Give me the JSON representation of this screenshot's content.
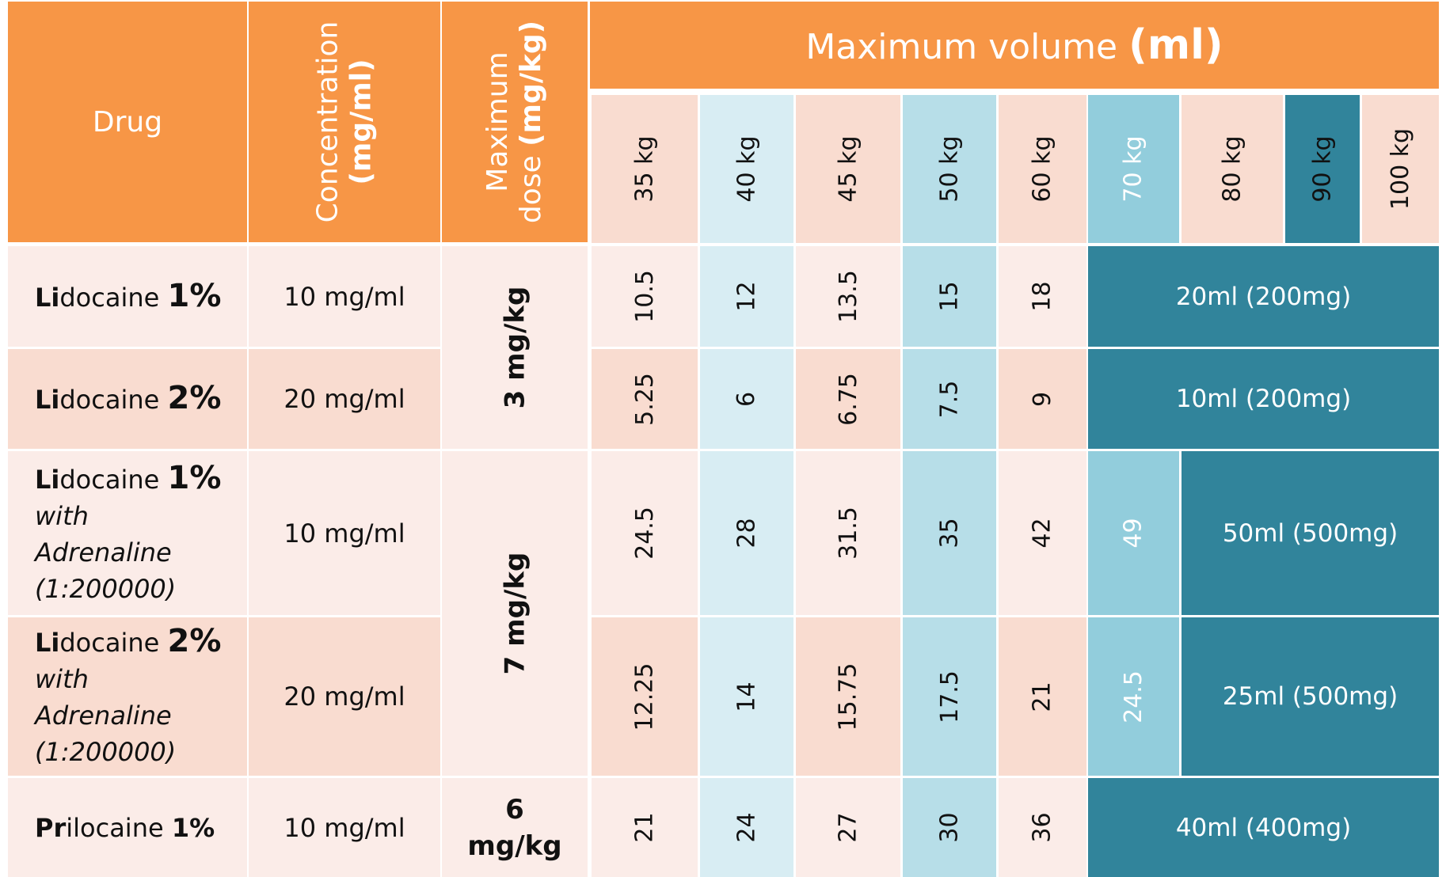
{
  "header": {
    "drug": "Drug",
    "concentration_line1": "Concentration",
    "concentration_line2": "(mg/ml)",
    "max_dose_line1": "Maximum",
    "max_dose_line2a": "dose",
    "max_dose_line2b": "(mg/kg)",
    "max_volume_text": "Maximum volume",
    "max_volume_unit": "(ml)"
  },
  "weights": [
    "35 kg",
    "40 kg",
    "45 kg",
    "50 kg",
    "60 kg",
    "70 kg",
    "80 kg",
    "90 kg",
    "100 kg"
  ],
  "doses": {
    "lidocaine": "3 mg/kg",
    "with_adrenaline": "7 mg/kg",
    "prilocaine_a": "6",
    "prilocaine_b": "mg/kg"
  },
  "rows": [
    {
      "drug_bold": "Li",
      "drug_rest": "docaine ",
      "drug_pct": "1%",
      "with": "",
      "adrenaline": "",
      "ratio": "",
      "concentration": "10 mg/ml",
      "values": [
        "10.5",
        "12",
        "13.5",
        "15",
        "18"
      ],
      "value_70": "",
      "span": "20ml (200mg)"
    },
    {
      "drug_bold": "Li",
      "drug_rest": "docaine ",
      "drug_pct": "2%",
      "with": "",
      "adrenaline": "",
      "ratio": "",
      "concentration": "20 mg/ml",
      "values": [
        "5.25",
        "6",
        "6.75",
        "7.5",
        "9"
      ],
      "value_70": "",
      "span": "10ml (200mg)"
    },
    {
      "drug_bold": "Li",
      "drug_rest": "docaine ",
      "drug_pct": "1%",
      "with": "with",
      "adrenaline": "Adrenaline",
      "ratio": "(1:200000)",
      "concentration": "10 mg/ml",
      "values": [
        "24.5",
        "28",
        "31.5",
        "35",
        "42"
      ],
      "value_70": "49",
      "span": "50ml (500mg)"
    },
    {
      "drug_bold": "Li",
      "drug_rest": "docaine ",
      "drug_pct": "2%",
      "with": "with",
      "adrenaline": "Adrenaline",
      "ratio": "(1:200000)",
      "concentration": "20 mg/ml",
      "values": [
        "12.25",
        "14",
        "15.75",
        "17.5",
        "21"
      ],
      "value_70": "24.5",
      "span": "25ml (500mg)"
    },
    {
      "drug_bold": "Pr",
      "drug_rest": "ilocaine ",
      "drug_pct": "1%",
      "with": "",
      "adrenaline": "",
      "ratio": "",
      "concentration": "10 mg/ml",
      "values": [
        "21",
        "24",
        "27",
        "30",
        "36"
      ],
      "value_70": "",
      "span": "40ml (400mg)"
    }
  ],
  "colors": {
    "header_orange": "#F79646",
    "peach_light": "#FBECE8",
    "peach": "#F9DCD0",
    "blue_light": "#D8EDF3",
    "blue": "#B7DEE8",
    "blue_mid": "#92CDDC",
    "teal": "#31849B"
  }
}
